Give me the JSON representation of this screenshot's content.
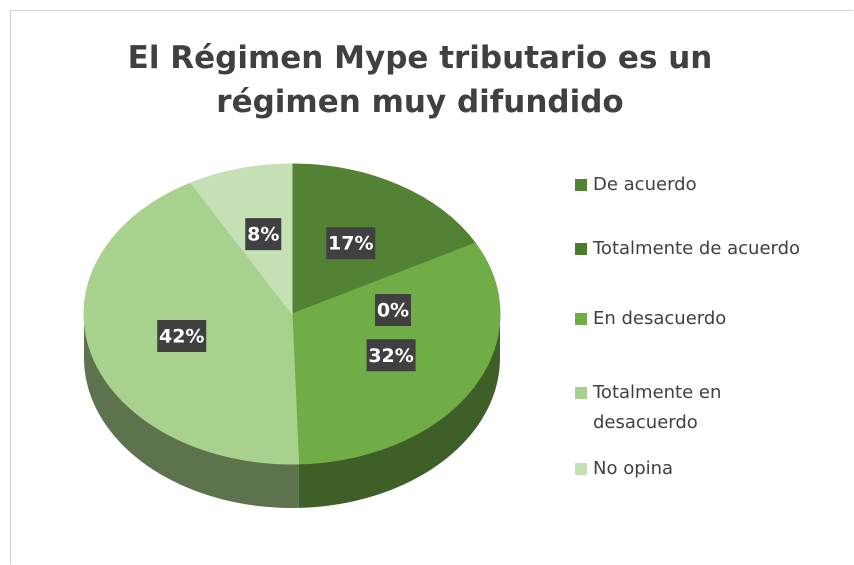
{
  "chart_data": {
    "type": "pie",
    "title": "El Régimen Mype tributario es un régimen muy difundido",
    "categories": [
      "De acuerdo",
      "Totalmente de acuerdo",
      "En desacuerdo",
      "Totalmente en desacuerdo",
      "No opina"
    ],
    "values": [
      17,
      0,
      32,
      42,
      8
    ],
    "value_labels": [
      "17%",
      "0%",
      "32%",
      "42%",
      "8%"
    ],
    "colors": [
      "#548235",
      "#4a7a2c",
      "#70ad47",
      "#a9d18e",
      "#c5e0b4"
    ],
    "legend": "right"
  }
}
